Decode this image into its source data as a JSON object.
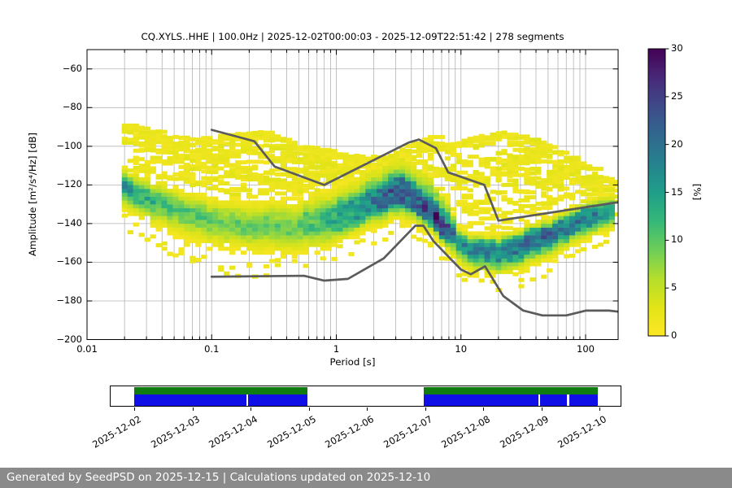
{
  "header": {
    "title": "CQ.XYLS..HHE | 100.0Hz | 2025-12-02T00:00:03 - 2025-12-09T22:51:42 | 278 segments"
  },
  "axes": {
    "x_label": "Period [s]",
    "y_label": "Amplitude [m²/s⁴/Hz] [dB]",
    "colorbar_label": "[%]",
    "x_tick_labels": [
      "0.01",
      "0.1",
      "1",
      "10",
      "100"
    ],
    "x_tick_values": [
      0.01,
      0.1,
      1,
      10,
      100
    ],
    "y_tick_labels": [
      "−60",
      "−80",
      "−100",
      "−120",
      "−140",
      "−160",
      "−180",
      "−200"
    ],
    "y_tick_values": [
      -60,
      -80,
      -100,
      -120,
      -140,
      -160,
      -180,
      -200
    ],
    "colorbar_tick_labels": [
      "0",
      "5",
      "10",
      "15",
      "20",
      "25",
      "30"
    ],
    "colorbar_tick_values": [
      0,
      5,
      10,
      15,
      20,
      25,
      30
    ]
  },
  "colors": {
    "grid": "#b3b3b3",
    "noise_model_line": "#5b5b5b",
    "spine": "#000000",
    "footer_bg": "#8a8a8a",
    "timeline_data_green": "#107c10",
    "timeline_psd_blue": "#1010e6"
  },
  "chart_data": {
    "type": "heatmap",
    "title": "CQ.XYLS..HHE | 100.0Hz | 2025-12-02T00:00:03 - 2025-12-09T22:51:42 | 278 segments",
    "xlabel": "Period [s]",
    "ylabel": "Amplitude [m²/s⁴/Hz] [dB]",
    "x_scale": "log",
    "x_range": [
      0.01,
      180
    ],
    "y_range": [
      -200,
      -50
    ],
    "grid": true,
    "colorbar": {
      "label": "[%]",
      "min": 0,
      "max": 30,
      "colormap": "viridis_r",
      "ticks": [
        0,
        5,
        10,
        15,
        20,
        25,
        30
      ]
    },
    "histogram": {
      "seed": 7,
      "period_min": 0.019,
      "period_max": 171,
      "period_bins_per_decade": 22,
      "db_bin_size": 2,
      "mode": {
        "periods": [
          0.019,
          0.03,
          0.05,
          0.08,
          0.12,
          0.2,
          0.35,
          0.6,
          0.9,
          1.4,
          2,
          2.6,
          3.2,
          4,
          5,
          5.7,
          6.3,
          7,
          8,
          10,
          12,
          15,
          19,
          25,
          35,
          50,
          70,
          90,
          120,
          170
        ],
        "db": [
          -121,
          -127,
          -132,
          -136,
          -139,
          -141,
          -142,
          -141,
          -138.5,
          -133,
          -128,
          -124.5,
          -123,
          -126,
          -130.5,
          -133.5,
          -136.5,
          -140.5,
          -144.5,
          -151.5,
          -154,
          -155.5,
          -156.5,
          -154.5,
          -150.5,
          -147,
          -142.5,
          -138.5,
          -136,
          -134
        ],
        "peak_percent": [
          16,
          13,
          11,
          10,
          9.5,
          9,
          9.5,
          10.5,
          13,
          15.5,
          19,
          22,
          23,
          22,
          24,
          27,
          30,
          26,
          21,
          18,
          17,
          17,
          18,
          19,
          20,
          20,
          19,
          19,
          18,
          17
        ],
        "sigma_above_db": [
          4.5,
          4.8,
          5,
          5.3,
          5.6,
          6.3,
          7,
          6.3,
          5.6,
          5.3,
          5,
          4.5,
          4.2,
          3.8,
          3.5,
          3.2,
          3,
          3,
          3,
          3.5,
          4,
          4.3,
          4.6,
          5,
          5,
          4.8,
          4.6,
          4.6,
          4.4,
          4
        ],
        "sigma_below_db": [
          5.5,
          6,
          6.5,
          6.8,
          7,
          7,
          7,
          6.5,
          6,
          6,
          6,
          6.3,
          6.5,
          6,
          5.6,
          5.2,
          5,
          5.2,
          5.5,
          5.5,
          5.3,
          5,
          5,
          5,
          5,
          4.8,
          4.6,
          4.5,
          4.4,
          4.2
        ]
      },
      "ridges": [
        {
          "offset_db": 6,
          "amplitude": 0.4,
          "period_min": 0.5,
          "period_max": 9
        },
        {
          "offset_db": 10.5,
          "amplitude": 0.25,
          "period_min": 0.5,
          "period_max": 8
        },
        {
          "offset_db": 15,
          "amplitude": 0.14,
          "period_min": 0.6,
          "period_max": 6
        },
        {
          "offset_db": 5,
          "amplitude": 0.3,
          "period_min": 12,
          "period_max": 120
        },
        {
          "offset_db": -6,
          "amplitude": 0.25,
          "period_min": 1,
          "period_max": 8
        }
      ],
      "scatter_cloud": {
        "periods": [
          0.019,
          0.03,
          0.06,
          0.1,
          0.15,
          0.25,
          0.4,
          0.7,
          1,
          1.5,
          2.5,
          4,
          5.5,
          7,
          10,
          14,
          20,
          28,
          40,
          60,
          85,
          120,
          170
        ],
        "top_db": [
          -88,
          -90,
          -95,
          -94,
          -92.5,
          -91.5,
          -96,
          -101,
          -103,
          -104,
          -104.5,
          -97,
          -94,
          -99,
          -96,
          -93.5,
          -92,
          -93.5,
          -98,
          -103.5,
          -108,
          -113,
          -119
        ],
        "density": [
          5,
          7,
          9,
          11,
          12,
          12,
          11,
          10,
          8,
          7,
          6,
          6,
          6,
          7,
          9,
          11,
          13,
          13,
          12,
          10,
          8,
          6,
          4
        ]
      },
      "underside_scatter": {
        "density": 2,
        "depth_sigma": 2.2
      },
      "traces": [
        [
          [
            0.019,
            -90
          ],
          [
            0.05,
            -99
          ],
          [
            0.12,
            -108
          ],
          [
            0.3,
            -116
          ],
          [
            0.7,
            -122
          ]
        ],
        [
          [
            0.019,
            -96
          ],
          [
            0.06,
            -106
          ],
          [
            0.15,
            -113
          ],
          [
            0.4,
            -120
          ],
          [
            0.8,
            -124
          ]
        ],
        [
          [
            0.022,
            -110
          ],
          [
            0.05,
            -116
          ],
          [
            0.1,
            -121
          ],
          [
            0.2,
            -125
          ]
        ],
        [
          [
            0.05,
            -106
          ],
          [
            0.12,
            -97
          ],
          [
            0.25,
            -92.5
          ],
          [
            0.5,
            -99
          ],
          [
            1,
            -109
          ],
          [
            2,
            -116
          ]
        ],
        [
          [
            0.06,
            -112
          ],
          [
            0.15,
            -103
          ],
          [
            0.3,
            -98
          ],
          [
            0.6,
            -105
          ],
          [
            1.2,
            -113
          ]
        ],
        [
          [
            0.08,
            -118
          ],
          [
            0.2,
            -109
          ],
          [
            0.4,
            -104
          ],
          [
            0.8,
            -112
          ],
          [
            1.5,
            -118
          ],
          [
            3,
            -122
          ]
        ],
        [
          [
            1.2,
            -115
          ],
          [
            2.5,
            -105
          ],
          [
            4.5,
            -95.5
          ],
          [
            7,
            -101
          ],
          [
            10,
            -108
          ]
        ],
        [
          [
            1,
            -120
          ],
          [
            2,
            -112
          ],
          [
            3.5,
            -107
          ],
          [
            6,
            -112
          ],
          [
            9,
            -118
          ]
        ],
        [
          [
            1.5,
            -124
          ],
          [
            3,
            -116
          ],
          [
            5,
            -110
          ],
          [
            8,
            -117
          ],
          [
            12,
            -124
          ]
        ],
        [
          [
            7,
            -113
          ],
          [
            12,
            -100
          ],
          [
            20,
            -92.5
          ],
          [
            35,
            -96
          ],
          [
            70,
            -106
          ],
          [
            120,
            -113
          ],
          [
            170,
            -119
          ]
        ],
        [
          [
            8,
            -120
          ],
          [
            14,
            -108
          ],
          [
            25,
            -98
          ],
          [
            45,
            -104
          ],
          [
            90,
            -112
          ],
          [
            160,
            -122
          ]
        ],
        [
          [
            10,
            -125
          ],
          [
            18,
            -112
          ],
          [
            30,
            -103
          ],
          [
            60,
            -110
          ],
          [
            110,
            -118
          ],
          [
            170,
            -126
          ]
        ],
        [
          [
            12,
            -130
          ],
          [
            22,
            -118
          ],
          [
            40,
            -110
          ],
          [
            80,
            -117
          ],
          [
            150,
            -127
          ]
        ],
        [
          [
            9,
            -135
          ],
          [
            15,
            -125
          ],
          [
            30,
            -117
          ],
          [
            60,
            -122
          ],
          [
            120,
            -130
          ],
          [
            170,
            -135
          ]
        ],
        [
          [
            0.3,
            -120
          ],
          [
            0.6,
            -114
          ],
          [
            1.1,
            -118
          ],
          [
            2,
            -123
          ]
        ]
      ],
      "noise_models": {
        "nhnm": [
          [
            0.1,
            -91.5
          ],
          [
            0.22,
            -97.4
          ],
          [
            0.32,
            -110.5
          ],
          [
            0.8,
            -120
          ],
          [
            3.8,
            -98.1
          ],
          [
            4.6,
            -96.5
          ],
          [
            6.3,
            -101
          ],
          [
            7.9,
            -113.5
          ],
          [
            15.4,
            -120
          ],
          [
            20,
            -138.5
          ],
          [
            180,
            -129
          ]
        ],
        "nlnm": [
          [
            0.1,
            -167.5
          ],
          [
            0.55,
            -167
          ],
          [
            0.8,
            -169.5
          ],
          [
            1.24,
            -168.6
          ],
          [
            2.4,
            -158
          ],
          [
            4.3,
            -141.1
          ],
          [
            5,
            -141.1
          ],
          [
            6,
            -149
          ],
          [
            10,
            -163.8
          ],
          [
            12,
            -166.2
          ],
          [
            15.6,
            -162.1
          ],
          [
            21.9,
            -177.5
          ],
          [
            31.6,
            -185
          ],
          [
            45,
            -187.5
          ],
          [
            70,
            -187.5
          ],
          [
            101,
            -185
          ],
          [
            154,
            -185
          ],
          [
            180,
            -185.5
          ]
        ]
      }
    }
  },
  "timeline": {
    "day_labels": [
      "2025-12-02",
      "2025-12-03",
      "2025-12-04",
      "2025-12-05",
      "2025-12-06",
      "2025-12-07",
      "2025-12-08",
      "2025-12-09",
      "2025-12-10"
    ],
    "segments": [
      {
        "start_day": 0.0,
        "end_day": 2.98,
        "psd_gaps": [
          [
            1.93,
            1.96
          ]
        ]
      },
      {
        "start_day": 4.99,
        "end_day": 7.97,
        "psd_gaps": [
          [
            6.95,
            6.99
          ],
          [
            7.44,
            7.48
          ]
        ]
      }
    ]
  },
  "footer": {
    "text": "Generated by SeedPSD on 2025-12-15 | Calculations updated on 2025-12-10"
  }
}
